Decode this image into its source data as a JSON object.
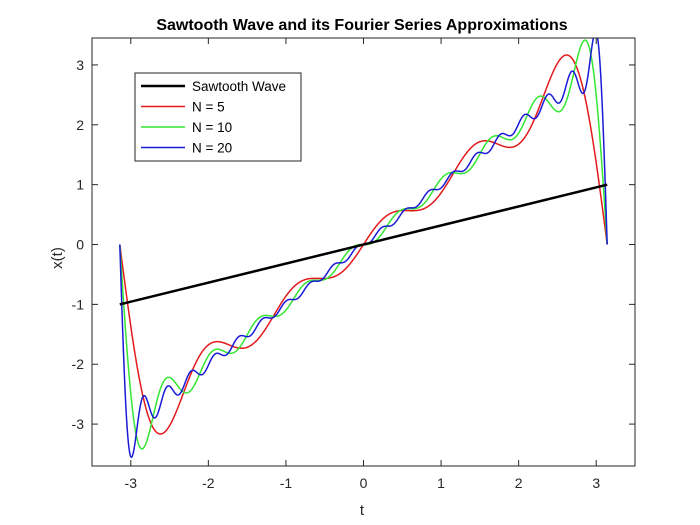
{
  "chart_data": {
    "type": "line",
    "title": "Sawtooth Wave and its Fourier Series Approximations",
    "xlabel": "t",
    "ylabel": "x(t)",
    "xlim": [
      -3.5,
      3.5
    ],
    "ylim": [
      -3.7,
      3.45
    ],
    "xticks": [
      -3,
      -2,
      -1,
      0,
      1,
      2,
      3
    ],
    "yticks": [
      -3,
      -2,
      -1,
      0,
      1,
      2,
      3
    ],
    "xtick_labels": [
      "-3",
      "-2",
      "-1",
      "0",
      "1",
      "2",
      "3"
    ],
    "ytick_labels": [
      "-3",
      "-2",
      "-1",
      "0",
      "1",
      "2",
      "3"
    ],
    "grid": false,
    "legend_position": "top-left",
    "t_range": [
      -3.14159,
      3.14159
    ],
    "series": [
      {
        "name": "Sawtooth Wave",
        "color": "#000000",
        "line_width": 2.5,
        "kind": "sawtooth",
        "x": [
          -3.14159,
          3.14159
        ],
        "y": [
          -1,
          1
        ]
      },
      {
        "name": "N = 5",
        "color": "#e31a1c",
        "line_width": 1.5,
        "kind": "fourier",
        "harmonics": 5
      },
      {
        "name": "N = 10",
        "color": "#33e633",
        "line_width": 1.5,
        "kind": "fourier",
        "harmonics": 10
      },
      {
        "name": "N = 20",
        "color": "#1a1ad6",
        "line_width": 1.5,
        "kind": "fourier",
        "harmonics": 20
      }
    ]
  }
}
